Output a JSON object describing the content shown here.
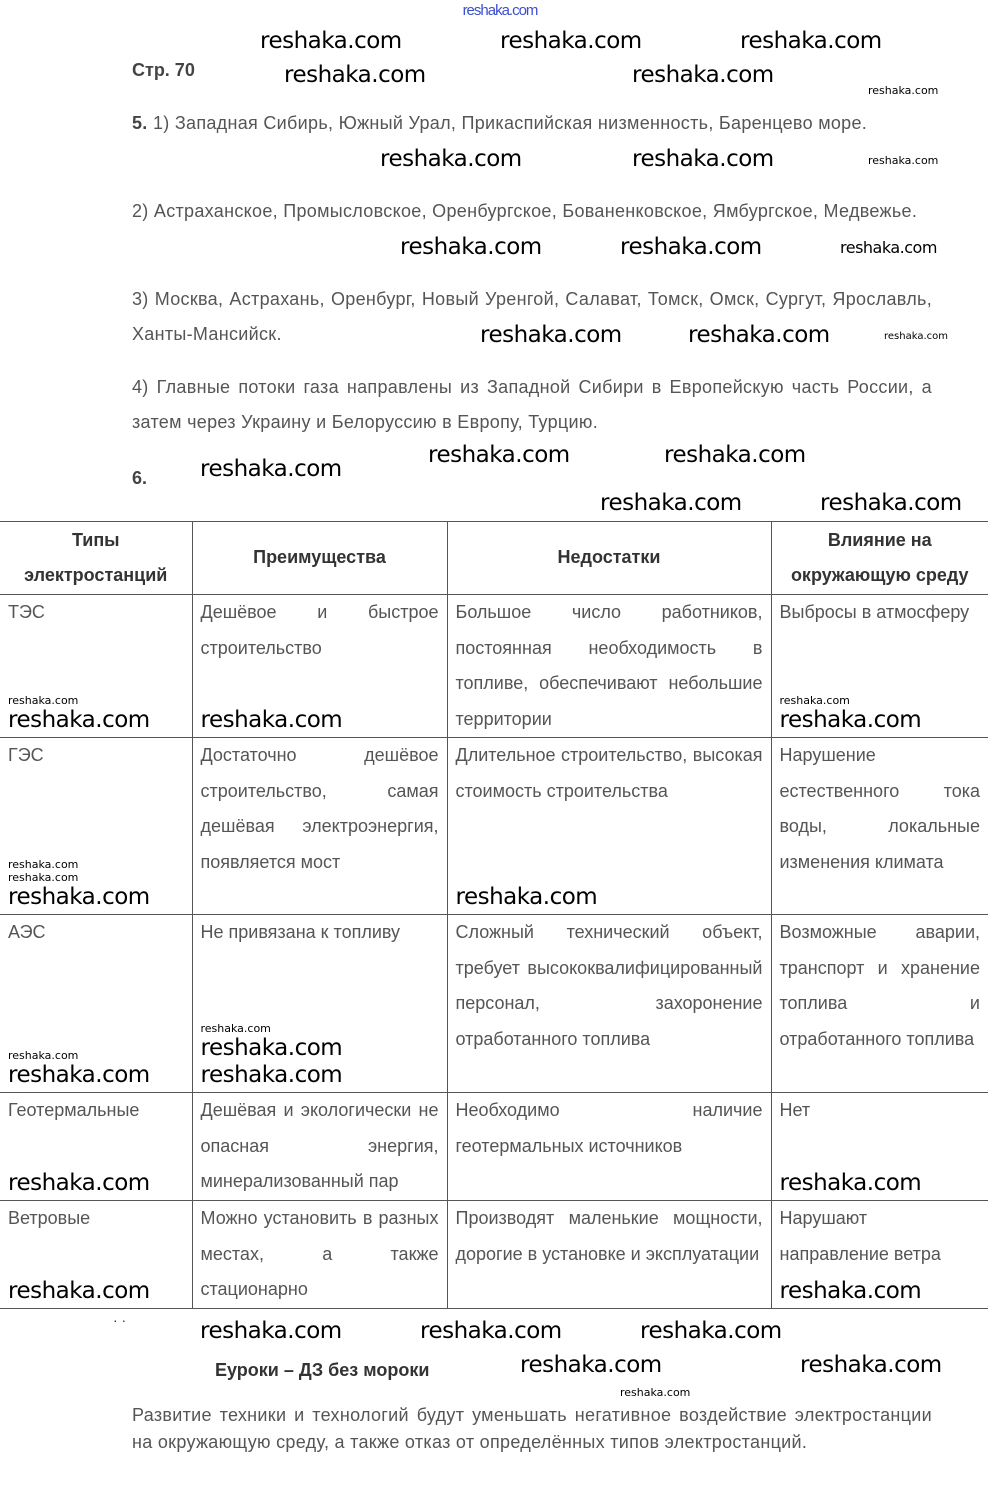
{
  "site_link": "reshaka.com",
  "watermark": "reshaka.com",
  "page_label": "Стр. 70",
  "task5": {
    "number": "5.",
    "p1": "1) Западная Сибирь, Южный Урал, Прикаспийская низменность, Баренцево море.",
    "p2": "2) Астраханское, Промысловское, Оренбургское, Бованенковское, Ямбургское, Медвежье.",
    "p3": "3) Москва, Астрахань, Оренбург, Новый Уренгой, Салават, Томск, Омск, Сургут, Ярославль, Ханты-Мансийск.",
    "p4": "4) Главные потоки газа направлены из Западной Сибири в Европейскую часть России, а затем через Украину и Белоруссию в Европу, Турцию."
  },
  "task6": {
    "number": "6.",
    "headers": [
      "Типы электростанций",
      "Преимущества",
      "Недостатки",
      "Влияние на окружающую среду"
    ],
    "rows": [
      [
        "ТЭС",
        "Дешёвое и быстрое строительство",
        "Большое число работников, постоянная необходимость в топливе, обеспечивают небольшие территории",
        "Выбросы в атмосферу"
      ],
      [
        "ГЭС",
        "Достаточно дешёвое строительство, самая дешёвая электроэнергия, появляется мост",
        "Длительное строительство, высокая стоимость строительства",
        "Нарушение естественного тока воды, локальные изменения климата"
      ],
      [
        "АЭС",
        "Не привязана к топливу",
        "Сложный технический объект, требует высококвалифицированный персонал, захоронение отработанного топлива",
        "Возможные аварии, транспорт и хранение топлива и отработанного топлива"
      ],
      [
        "Геотермальные",
        "Дешёвая и экологически не опасная энергия, минерализованный пар",
        "Необходимо наличие геотермальных источников",
        "Нет"
      ],
      [
        "Ветровые",
        "Можно установить в разных местах, а также стационарно",
        "Производят маленькие мощности, дорогие в установке и эксплуатации",
        "Нарушают направление ветра"
      ]
    ]
  },
  "dots": "· ·",
  "brand": "Еуроки – ДЗ без мороки",
  "conclusion": "Развитие техники и технологий будут уменьшать негативное воздействие электростанции на окружающую среду, а также отказ от определённых типов электростанций."
}
